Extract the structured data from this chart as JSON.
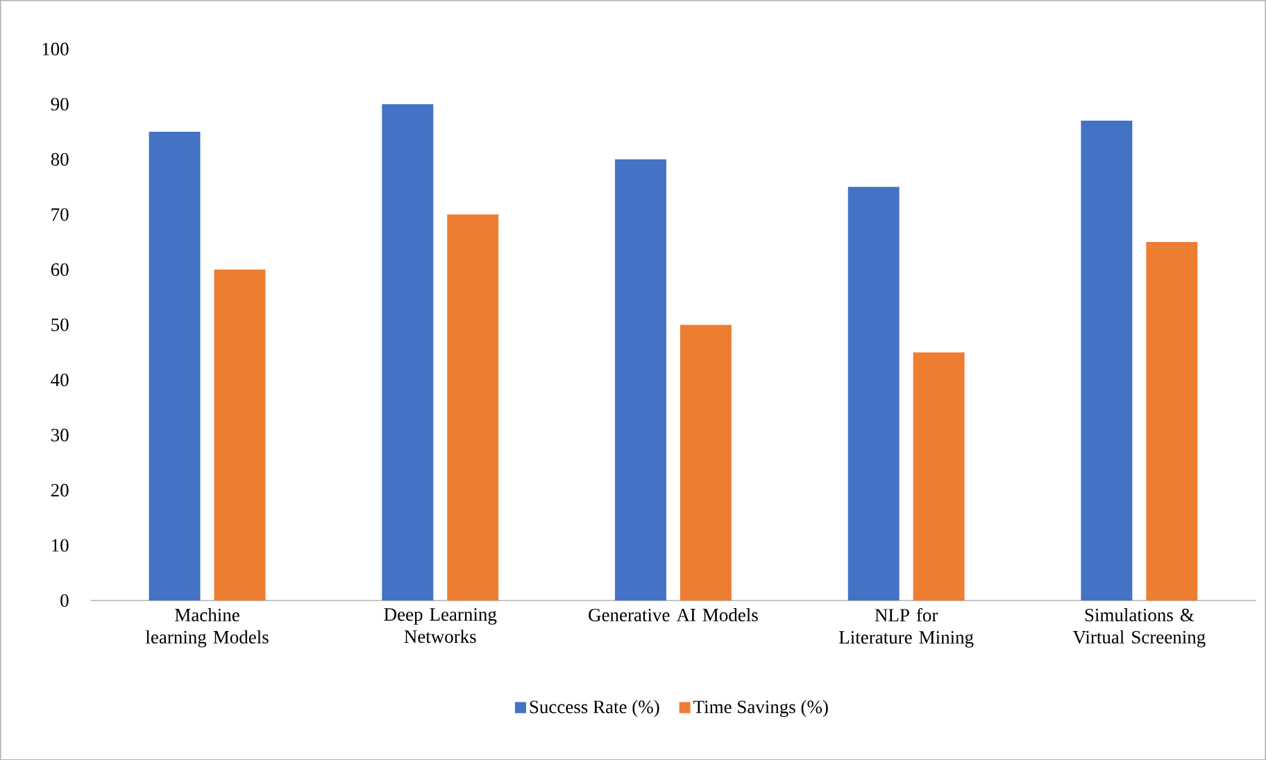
{
  "chart_data": {
    "type": "bar",
    "categories": [
      "Machine learning Models",
      "Deep Learning Networks",
      "Generative AI Models",
      "NLP for Literature Mining",
      "Simulations & Virtual Screening"
    ],
    "series": [
      {
        "name": "Success Rate (%)",
        "color": "#4472c4",
        "values": [
          85,
          90,
          80,
          75,
          87
        ]
      },
      {
        "name": "Time Savings (%)",
        "color": "#ed7d31",
        "values": [
          60,
          70,
          50,
          45,
          65
        ]
      }
    ],
    "ylim": [
      0,
      100
    ],
    "yticks": [
      0,
      10,
      20,
      30,
      40,
      50,
      60,
      70,
      80,
      90,
      100
    ],
    "legend": "bottom"
  }
}
